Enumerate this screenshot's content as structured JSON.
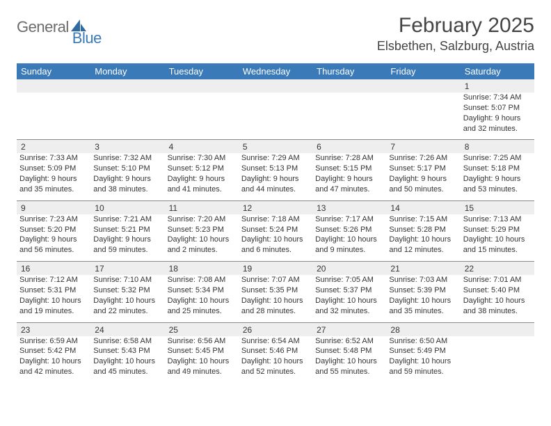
{
  "logo": {
    "text1": "General",
    "text2": "Blue"
  },
  "title": "February 2025",
  "location": "Elsbethen, Salzburg, Austria",
  "colors": {
    "header_bg": "#3a7ab8",
    "header_text": "#ffffff",
    "daynum_bg": "#eeeeee",
    "text": "#333333",
    "border": "#888888",
    "logo_gray": "#6b6b6b",
    "logo_blue": "#3a7ab8",
    "page_bg": "#ffffff"
  },
  "typography": {
    "title_fontsize": 30,
    "location_fontsize": 18,
    "dow_fontsize": 13,
    "daynum_fontsize": 12,
    "cell_fontsize": 11
  },
  "dow": [
    "Sunday",
    "Monday",
    "Tuesday",
    "Wednesday",
    "Thursday",
    "Friday",
    "Saturday"
  ],
  "weeks": [
    [
      null,
      null,
      null,
      null,
      null,
      null,
      {
        "n": "1",
        "sr": "7:34 AM",
        "ss": "5:07 PM",
        "dl": "9 hours and 32 minutes."
      }
    ],
    [
      {
        "n": "2",
        "sr": "7:33 AM",
        "ss": "5:09 PM",
        "dl": "9 hours and 35 minutes."
      },
      {
        "n": "3",
        "sr": "7:32 AM",
        "ss": "5:10 PM",
        "dl": "9 hours and 38 minutes."
      },
      {
        "n": "4",
        "sr": "7:30 AM",
        "ss": "5:12 PM",
        "dl": "9 hours and 41 minutes."
      },
      {
        "n": "5",
        "sr": "7:29 AM",
        "ss": "5:13 PM",
        "dl": "9 hours and 44 minutes."
      },
      {
        "n": "6",
        "sr": "7:28 AM",
        "ss": "5:15 PM",
        "dl": "9 hours and 47 minutes."
      },
      {
        "n": "7",
        "sr": "7:26 AM",
        "ss": "5:17 PM",
        "dl": "9 hours and 50 minutes."
      },
      {
        "n": "8",
        "sr": "7:25 AM",
        "ss": "5:18 PM",
        "dl": "9 hours and 53 minutes."
      }
    ],
    [
      {
        "n": "9",
        "sr": "7:23 AM",
        "ss": "5:20 PM",
        "dl": "9 hours and 56 minutes."
      },
      {
        "n": "10",
        "sr": "7:21 AM",
        "ss": "5:21 PM",
        "dl": "9 hours and 59 minutes."
      },
      {
        "n": "11",
        "sr": "7:20 AM",
        "ss": "5:23 PM",
        "dl": "10 hours and 2 minutes."
      },
      {
        "n": "12",
        "sr": "7:18 AM",
        "ss": "5:24 PM",
        "dl": "10 hours and 6 minutes."
      },
      {
        "n": "13",
        "sr": "7:17 AM",
        "ss": "5:26 PM",
        "dl": "10 hours and 9 minutes."
      },
      {
        "n": "14",
        "sr": "7:15 AM",
        "ss": "5:28 PM",
        "dl": "10 hours and 12 minutes."
      },
      {
        "n": "15",
        "sr": "7:13 AM",
        "ss": "5:29 PM",
        "dl": "10 hours and 15 minutes."
      }
    ],
    [
      {
        "n": "16",
        "sr": "7:12 AM",
        "ss": "5:31 PM",
        "dl": "10 hours and 19 minutes."
      },
      {
        "n": "17",
        "sr": "7:10 AM",
        "ss": "5:32 PM",
        "dl": "10 hours and 22 minutes."
      },
      {
        "n": "18",
        "sr": "7:08 AM",
        "ss": "5:34 PM",
        "dl": "10 hours and 25 minutes."
      },
      {
        "n": "19",
        "sr": "7:07 AM",
        "ss": "5:35 PM",
        "dl": "10 hours and 28 minutes."
      },
      {
        "n": "20",
        "sr": "7:05 AM",
        "ss": "5:37 PM",
        "dl": "10 hours and 32 minutes."
      },
      {
        "n": "21",
        "sr": "7:03 AM",
        "ss": "5:39 PM",
        "dl": "10 hours and 35 minutes."
      },
      {
        "n": "22",
        "sr": "7:01 AM",
        "ss": "5:40 PM",
        "dl": "10 hours and 38 minutes."
      }
    ],
    [
      {
        "n": "23",
        "sr": "6:59 AM",
        "ss": "5:42 PM",
        "dl": "10 hours and 42 minutes."
      },
      {
        "n": "24",
        "sr": "6:58 AM",
        "ss": "5:43 PM",
        "dl": "10 hours and 45 minutes."
      },
      {
        "n": "25",
        "sr": "6:56 AM",
        "ss": "5:45 PM",
        "dl": "10 hours and 49 minutes."
      },
      {
        "n": "26",
        "sr": "6:54 AM",
        "ss": "5:46 PM",
        "dl": "10 hours and 52 minutes."
      },
      {
        "n": "27",
        "sr": "6:52 AM",
        "ss": "5:48 PM",
        "dl": "10 hours and 55 minutes."
      },
      {
        "n": "28",
        "sr": "6:50 AM",
        "ss": "5:49 PM",
        "dl": "10 hours and 59 minutes."
      },
      null
    ]
  ],
  "labels": {
    "sunrise": "Sunrise: ",
    "sunset": "Sunset: ",
    "daylight": "Daylight: "
  }
}
